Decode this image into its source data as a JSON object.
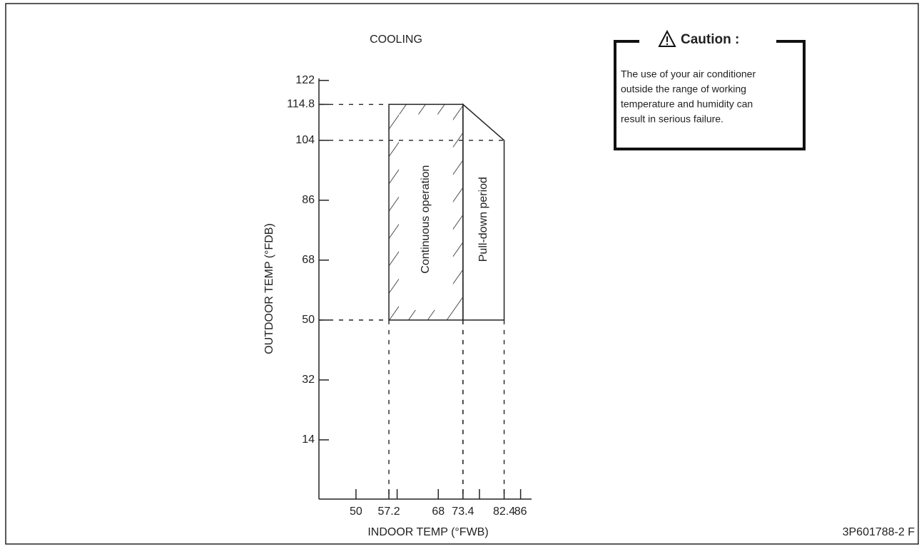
{
  "chart_data": {
    "type": "region",
    "title": "COOLING",
    "x_label": "INDOOR TEMP (°FWB)",
    "y_label": "OUTDOOR TEMP (°FDB)",
    "xlim": [
      41.9,
      88.4
    ],
    "ylim": [
      -3.8,
      122.6
    ],
    "xticks": [
      50,
      57.2,
      68,
      73.4,
      82.4,
      86
    ],
    "xminor_ticks": [
      59,
      77
    ],
    "yticks": [
      14,
      32,
      50,
      68,
      86,
      104,
      114.8,
      122
    ],
    "regions": [
      {
        "name": "Continuous operation",
        "hatched": true,
        "x": [
          57.2,
          57.2,
          73.4,
          73.4
        ],
        "y": [
          50,
          114.8,
          114.8,
          50
        ]
      },
      {
        "name": "Pull-down period",
        "hatched": false,
        "x": [
          73.4,
          73.4,
          82.4,
          82.4
        ],
        "y": [
          50,
          114.8,
          104,
          50
        ]
      }
    ]
  },
  "caution": {
    "title": "Caution :",
    "lines": [
      "The use of your air conditioner",
      "outside the range of working",
      "temperature and humidity can",
      "result in serious failure."
    ]
  },
  "code": "3P601788-2 F"
}
